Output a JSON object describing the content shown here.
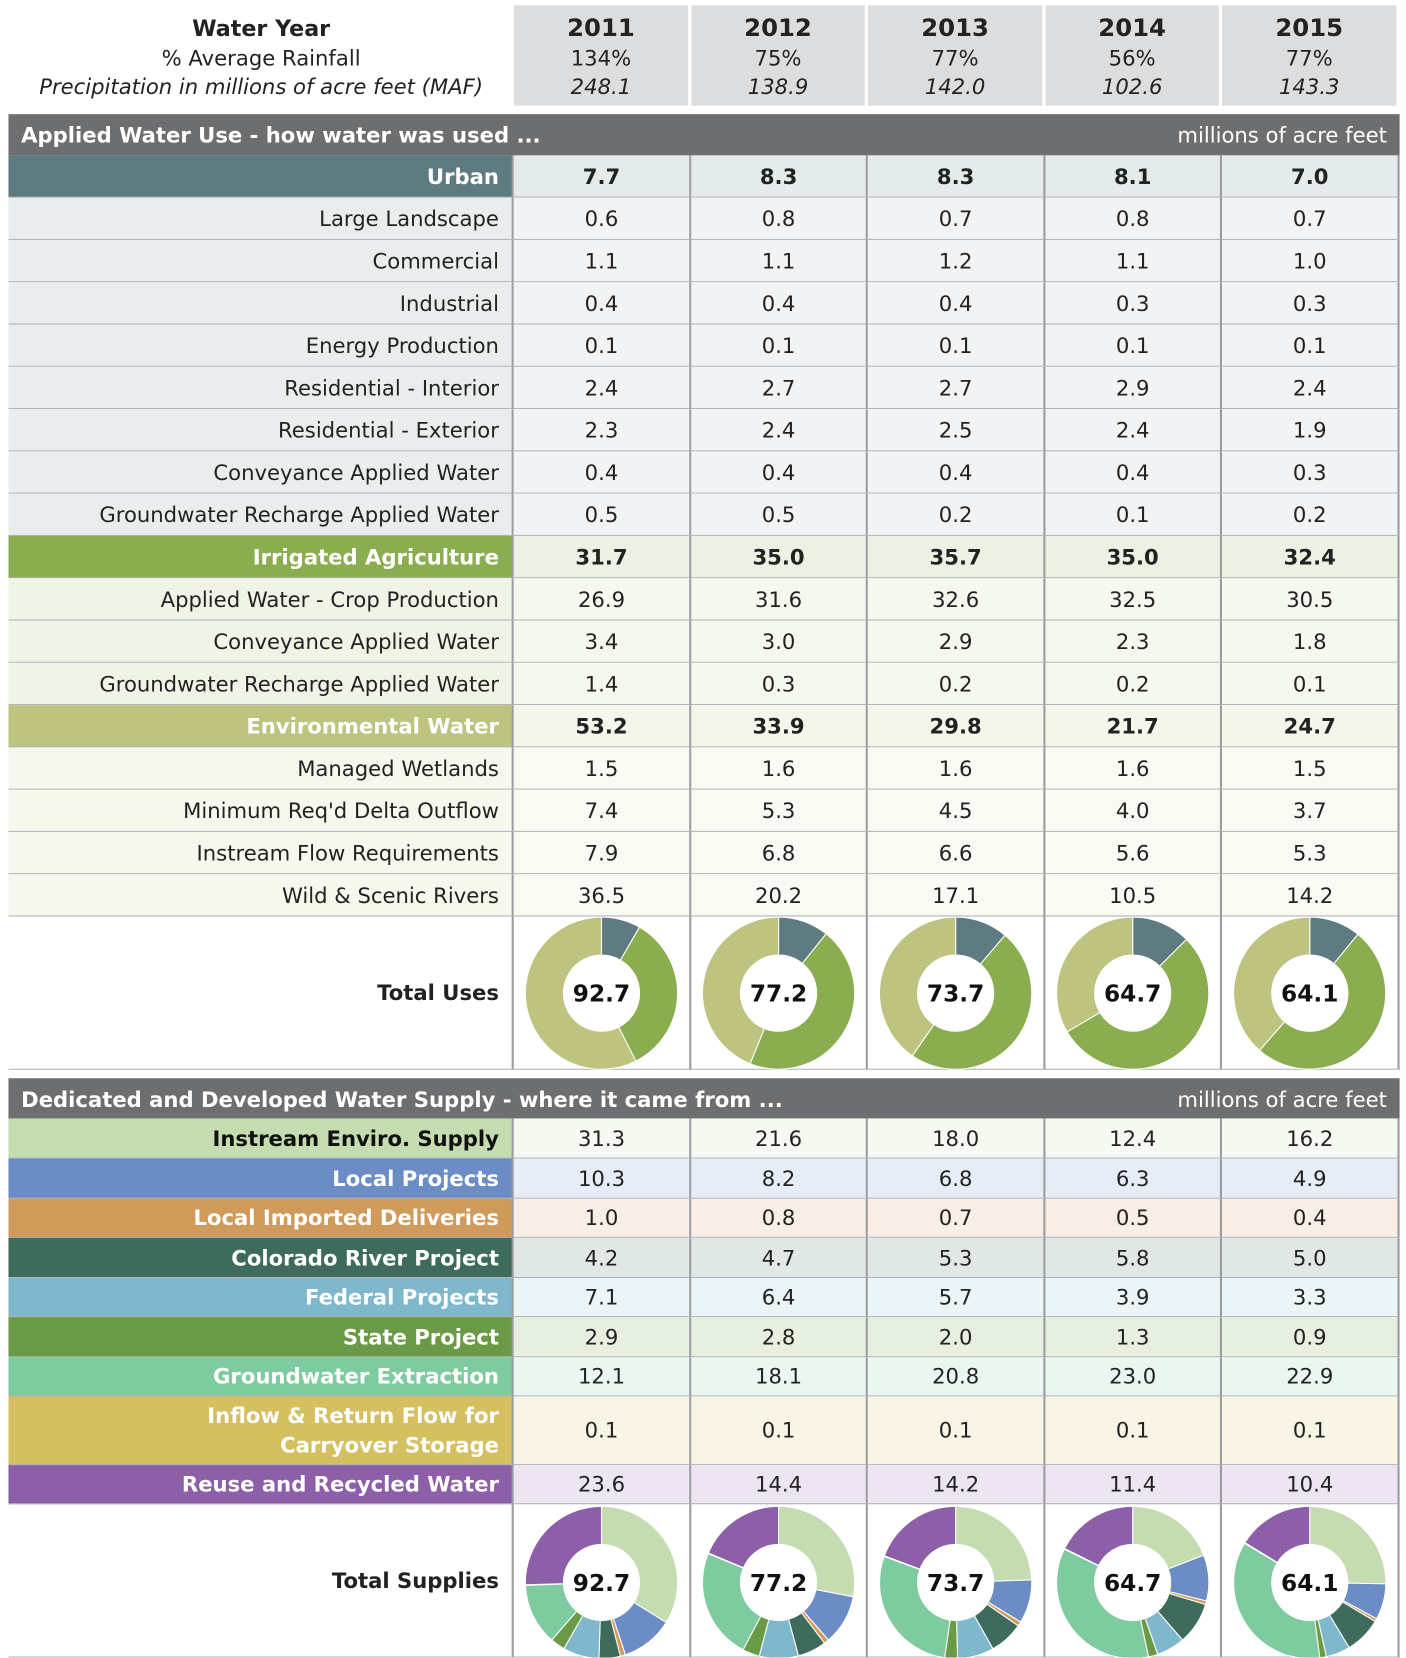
{
  "header": {
    "title": "Water Year",
    "rainfall_label": "% Average Rainfall",
    "precip_label": "Precipitation in millions of acre feet (MAF)",
    "years": [
      "2011",
      "2012",
      "2013",
      "2014",
      "2015"
    ],
    "rainfall": [
      "134%",
      "75%",
      "77%",
      "56%",
      "77%"
    ],
    "precipitation": [
      "248.1",
      "138.9",
      "142.0",
      "102.6",
      "143.3"
    ]
  },
  "uses": {
    "title": "Applied Water Use - how water was used ...",
    "unit": "millions of acre feet",
    "groups": [
      {
        "name": "Urban",
        "color": "#5f7b82",
        "values": [
          "7.7",
          "8.3",
          "8.3",
          "8.1",
          "7.0"
        ],
        "rows": [
          {
            "name": "Large Landscape",
            "values": [
              "0.6",
              "0.8",
              "0.7",
              "0.8",
              "0.7"
            ]
          },
          {
            "name": "Commercial",
            "values": [
              "1.1",
              "1.1",
              "1.2",
              "1.1",
              "1.0"
            ]
          },
          {
            "name": "Industrial",
            "values": [
              "0.4",
              "0.4",
              "0.4",
              "0.3",
              "0.3"
            ]
          },
          {
            "name": "Energy Production",
            "values": [
              "0.1",
              "0.1",
              "0.1",
              "0.1",
              "0.1"
            ]
          },
          {
            "name": "Residential - Interior",
            "values": [
              "2.4",
              "2.7",
              "2.7",
              "2.9",
              "2.4"
            ]
          },
          {
            "name": "Residential - Exterior",
            "values": [
              "2.3",
              "2.4",
              "2.5",
              "2.4",
              "1.9"
            ]
          },
          {
            "name": "Conveyance Applied Water",
            "values": [
              "0.4",
              "0.4",
              "0.4",
              "0.4",
              "0.3"
            ]
          },
          {
            "name": "Groundwater Recharge Applied Water",
            "values": [
              "0.5",
              "0.5",
              "0.2",
              "0.1",
              "0.2"
            ]
          }
        ]
      },
      {
        "name": "Irrigated Agriculture",
        "color": "#8aad4f",
        "values": [
          "31.7",
          "35.0",
          "35.7",
          "35.0",
          "32.4"
        ],
        "rows": [
          {
            "name": "Applied Water - Crop Production",
            "values": [
              "26.9",
              "31.6",
              "32.6",
              "32.5",
              "30.5"
            ]
          },
          {
            "name": "Conveyance Applied Water",
            "values": [
              "3.4",
              "3.0",
              "2.9",
              "2.3",
              "1.8"
            ]
          },
          {
            "name": "Groundwater Recharge Applied Water",
            "values": [
              "1.4",
              "0.3",
              "0.2",
              "0.2",
              "0.1"
            ]
          }
        ]
      },
      {
        "name": "Environmental Water",
        "color": "#bec47f",
        "values": [
          "53.2",
          "33.9",
          "29.8",
          "21.7",
          "24.7"
        ],
        "rows": [
          {
            "name": "Managed Wetlands",
            "values": [
              "1.5",
              "1.6",
              "1.6",
              "1.6",
              "1.5"
            ]
          },
          {
            "name": "Minimum Req'd Delta Outflow",
            "values": [
              "7.4",
              "5.3",
              "4.5",
              "4.0",
              "3.7"
            ]
          },
          {
            "name": "Instream Flow Requirements",
            "values": [
              "7.9",
              "6.8",
              "6.6",
              "5.6",
              "5.3"
            ]
          },
          {
            "name": "Wild & Scenic Rivers",
            "values": [
              "36.5",
              "20.2",
              "17.1",
              "10.5",
              "14.2"
            ]
          }
        ]
      }
    ],
    "total_label": "Total Uses",
    "totals": [
      "92.7",
      "77.2",
      "73.7",
      "64.7",
      "64.1"
    ]
  },
  "supplies": {
    "title": "Dedicated and Developed Water Supply - where it came from ...",
    "unit": "millions of acre feet",
    "rows": [
      {
        "name": "Instream Enviro. Supply",
        "color": "#c4dcb0",
        "values": [
          "31.3",
          "21.6",
          "18.0",
          "12.4",
          "16.2"
        ]
      },
      {
        "name": "Local Projects",
        "color": "#6b8cc4",
        "values": [
          "10.3",
          "8.2",
          "6.8",
          "6.3",
          "4.9"
        ]
      },
      {
        "name": "Local Imported Deliveries",
        "color": "#d09a5a",
        "values": [
          "1.0",
          "0.8",
          "0.7",
          "0.5",
          "0.4"
        ]
      },
      {
        "name": "Colorado River Project",
        "color": "#3f6b5c",
        "values": [
          "4.2",
          "4.7",
          "5.3",
          "5.8",
          "5.0"
        ]
      },
      {
        "name": "Federal Projects",
        "color": "#7fb8cc",
        "values": [
          "7.1",
          "6.4",
          "5.7",
          "3.9",
          "3.3"
        ]
      },
      {
        "name": "State Project",
        "color": "#6a9a45",
        "values": [
          "2.9",
          "2.8",
          "2.0",
          "1.3",
          "0.9"
        ]
      },
      {
        "name": "Groundwater Extraction",
        "color": "#7ecba0",
        "values": [
          "12.1",
          "18.1",
          "20.8",
          "23.0",
          "22.9"
        ]
      },
      {
        "name": "Inflow & Return Flow for Carryover Storage",
        "color": "#d4c060",
        "values": [
          "0.1",
          "0.1",
          "0.1",
          "0.1",
          "0.1"
        ]
      },
      {
        "name": "Reuse and Recycled Water",
        "color": "#8d5fa8",
        "values": [
          "23.6",
          "14.4",
          "14.2",
          "11.4",
          "10.4"
        ]
      }
    ],
    "total_label": "Total Supplies",
    "totals": [
      "92.7",
      "77.2",
      "73.7",
      "64.7",
      "64.1"
    ]
  }
}
